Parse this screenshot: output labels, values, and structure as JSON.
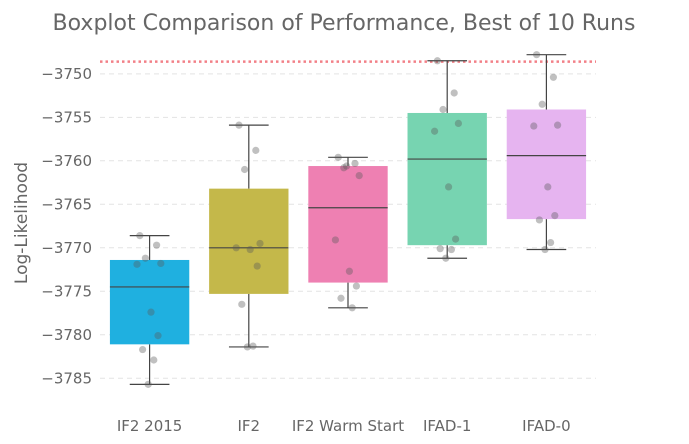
{
  "chart_data": {
    "type": "boxplot",
    "title": "Boxplot Comparison of Performance, Best of 10 Runs",
    "xlabel": "",
    "ylabel": "Log-Likelihood",
    "ylim": [
      -3787.5,
      -3746.8
    ],
    "yticks": [
      -3750,
      -3755,
      -3760,
      -3765,
      -3770,
      -3775,
      -3780,
      -3785
    ],
    "ytick_labels": [
      "−3750",
      "−3755",
      "−3760",
      "−3765",
      "−3770",
      "−3775",
      "−3780",
      "−3785"
    ],
    "grid": true,
    "reference_line": -3748.6,
    "reference_color": "#f28088",
    "categories": [
      "IF2 2015",
      "IF2",
      "IF2 Warm Start",
      "IFAD-1",
      "IFAD-0"
    ],
    "colors": [
      "#1fb0e0",
      "#c4b84a",
      "#ee80b2",
      "#77d4b1",
      "#e6b4f0"
    ],
    "boxes": [
      {
        "whisker_low": -3785.7,
        "q1": -3781.1,
        "median": -3774.5,
        "q3": -3771.4,
        "whisker_high": -3768.6
      },
      {
        "whisker_low": -3781.4,
        "q1": -3775.3,
        "median": -3770.0,
        "q3": -3763.2,
        "whisker_high": -3755.9
      },
      {
        "whisker_low": -3776.9,
        "q1": -3774.0,
        "median": -3765.4,
        "q3": -3760.6,
        "whisker_high": -3759.6
      },
      {
        "whisker_low": -3771.2,
        "q1": -3769.7,
        "median": -3759.8,
        "q3": -3754.5,
        "whisker_high": -3748.5
      },
      {
        "whisker_low": -3770.2,
        "q1": -3766.7,
        "median": -3759.4,
        "q3": -3754.1,
        "whisker_high": -3747.8
      }
    ],
    "points": [
      [
        -3768.6,
        -3769.7,
        -3771.2,
        -3771.8,
        -3771.9,
        -3777.4,
        -3780.1,
        -3781.7,
        -3782.9,
        -3785.7
      ],
      [
        -3755.9,
        -3758.8,
        -3761.0,
        -3769.5,
        -3770.0,
        -3770.2,
        -3772.1,
        -3776.5,
        -3781.3,
        -3781.4
      ],
      [
        -3759.6,
        -3760.3,
        -3760.8,
        -3761.7,
        -3769.1,
        -3772.7,
        -3774.4,
        -3775.8,
        -3776.9,
        -3760.6
      ],
      [
        -3748.5,
        -3752.2,
        -3754.1,
        -3755.7,
        -3756.6,
        -3763.0,
        -3769.0,
        -3770.1,
        -3770.2,
        -3771.2
      ],
      [
        -3747.8,
        -3750.4,
        -3753.5,
        -3755.9,
        -3756.0,
        -3763.0,
        -3766.3,
        -3766.8,
        -3769.4,
        -3770.2
      ]
    ]
  }
}
